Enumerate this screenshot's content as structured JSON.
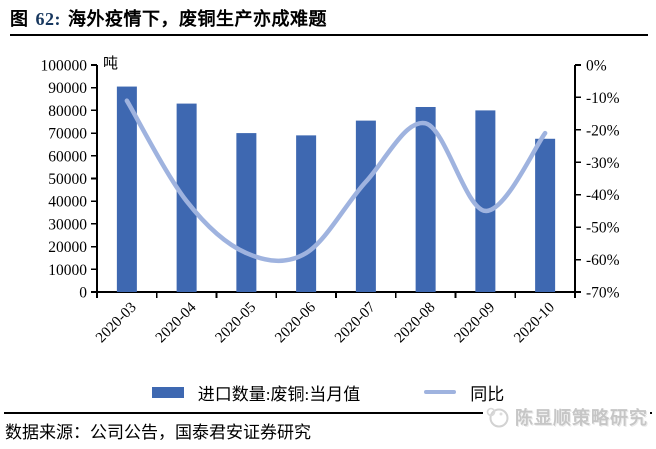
{
  "title": {
    "figure_label": "图",
    "figure_number": "62:",
    "text": "海外疫情下，废铜生产亦成难题",
    "number_color": "#17375E"
  },
  "chart_data": {
    "type": "bar",
    "title": "海外疫情下，废铜生产亦成难题",
    "categories": [
      "2020-03",
      "2020-04",
      "2020-05",
      "2020-06",
      "2020-07",
      "2020-08",
      "2020-09",
      "2020-10"
    ],
    "series": [
      {
        "name": "进口数量:废铜:当月值",
        "type": "bar",
        "axis": "left",
        "color": "#3E68B1",
        "values": [
          90500,
          83000,
          70000,
          69000,
          75500,
          81500,
          80000,
          67500
        ]
      },
      {
        "name": "同比",
        "type": "line",
        "axis": "right",
        "color": "#9FB3DF",
        "values": [
          -11,
          -42,
          -58,
          -58,
          -36,
          -18,
          -45,
          -21
        ]
      }
    ],
    "left_axis": {
      "unit": "吨",
      "min": 0,
      "max": 100000,
      "step": 10000,
      "tick_labels": [
        "100000",
        "90000",
        "80000",
        "70000",
        "60000",
        "50000",
        "40000",
        "30000",
        "20000",
        "10000",
        "0"
      ]
    },
    "right_axis": {
      "min": -70,
      "max": 0,
      "step": 10,
      "tick_labels": [
        "0%",
        "-10%",
        "-20%",
        "-30%",
        "-40%",
        "-50%",
        "-60%",
        "-70%"
      ]
    },
    "grid": false,
    "legend_position": "bottom"
  },
  "footer": {
    "source": "数据来源：公司公告，国泰君安证券研究",
    "watermark": "陈显顺策略研究"
  }
}
